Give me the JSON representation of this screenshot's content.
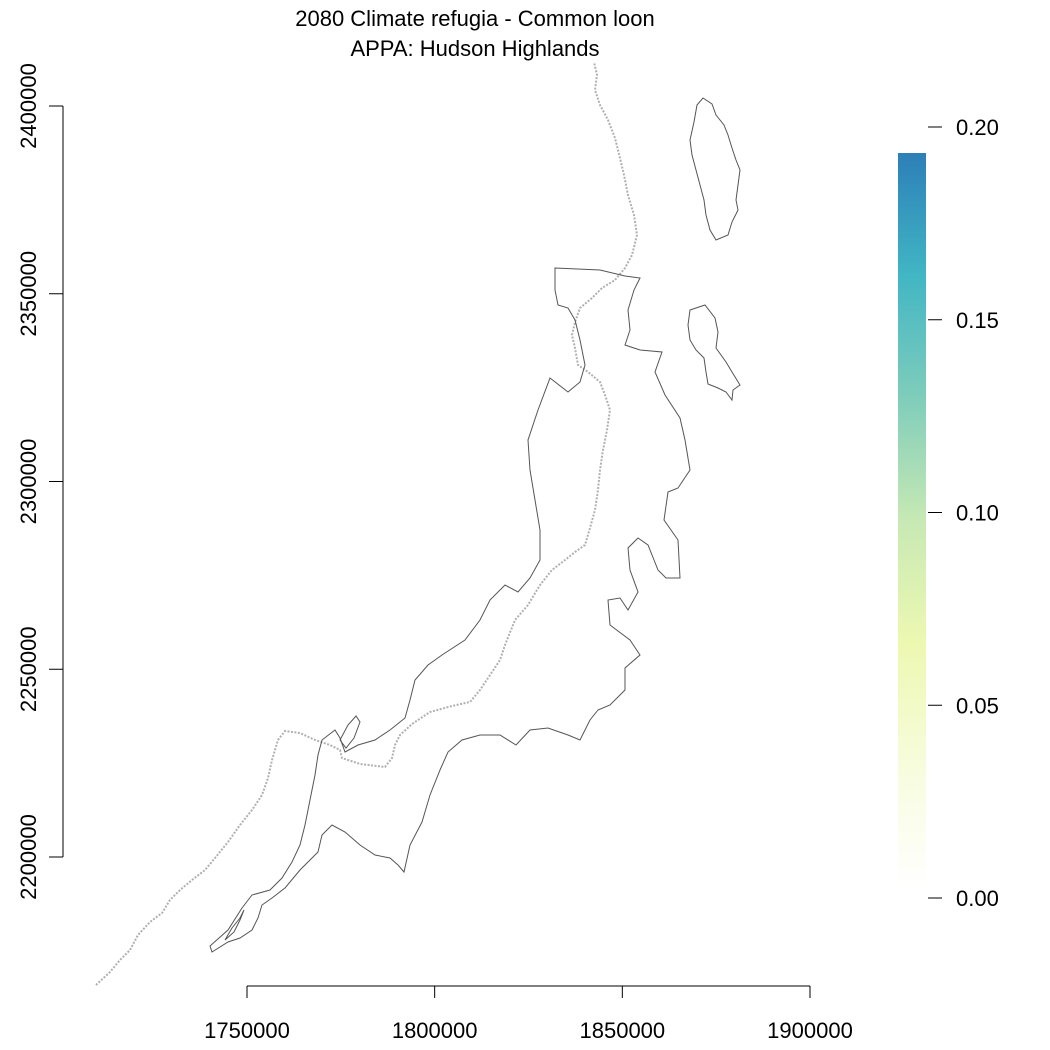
{
  "title": {
    "line1": "2080 Climate refugia - Common loon",
    "line2": "APPA: Hudson Highlands"
  },
  "x_axis": {
    "ticks": [
      1750000,
      1800000,
      1850000,
      1900000
    ],
    "tick_labels": [
      "1750000",
      "1800000",
      "1850000",
      "1900000"
    ]
  },
  "y_axis": {
    "ticks": [
      2200000,
      2250000,
      2300000,
      2350000,
      2400000
    ],
    "tick_labels": [
      "2200000",
      "2250000",
      "2300000",
      "2350000",
      "2400000"
    ]
  },
  "legend": {
    "ticks": [
      0.0,
      0.05,
      0.1,
      0.15,
      0.2
    ],
    "tick_labels": [
      "0.00",
      "0.05",
      "0.10",
      "0.15",
      "0.20"
    ],
    "range": [
      0.0,
      0.19
    ],
    "colors": [
      "#ffffff",
      "#f7fcdc",
      "#edf8b1",
      "#c7e9b4",
      "#7fcdbb",
      "#41b6c4",
      "#2c7fb8"
    ]
  },
  "map": {
    "boundary_color": "#555555",
    "trail_color": "#b0b0b0"
  }
}
